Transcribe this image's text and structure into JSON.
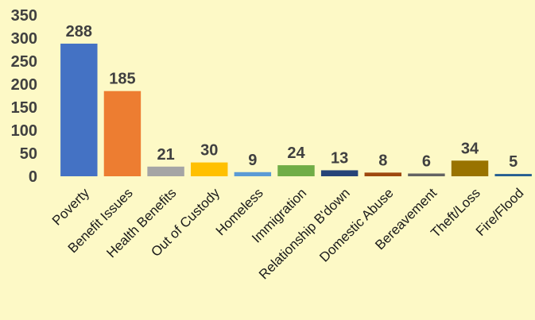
{
  "chart_data": {
    "type": "bar",
    "title": "",
    "xlabel": "",
    "ylabel": "",
    "ylim": [
      0,
      350
    ],
    "yticks": [
      0,
      50,
      100,
      150,
      200,
      250,
      300,
      350
    ],
    "grid": false,
    "legend": "none",
    "categories": [
      "Poverty",
      "Benefit Issues",
      "Health Benefits",
      "Out of Custody",
      "Homeless",
      "Immigration",
      "Relationship B'down",
      "Domestic Abuse",
      "Bereavement",
      "Theft/Loss",
      "Fire/Flood"
    ],
    "values": [
      288,
      185,
      21,
      30,
      9,
      24,
      13,
      8,
      6,
      34,
      5
    ],
    "colors": [
      "#4472c4",
      "#ed7d31",
      "#a5a5a5",
      "#ffc000",
      "#5b9bd5",
      "#70ad47",
      "#264478",
      "#9e480e",
      "#636363",
      "#997300",
      "#255e91"
    ]
  }
}
